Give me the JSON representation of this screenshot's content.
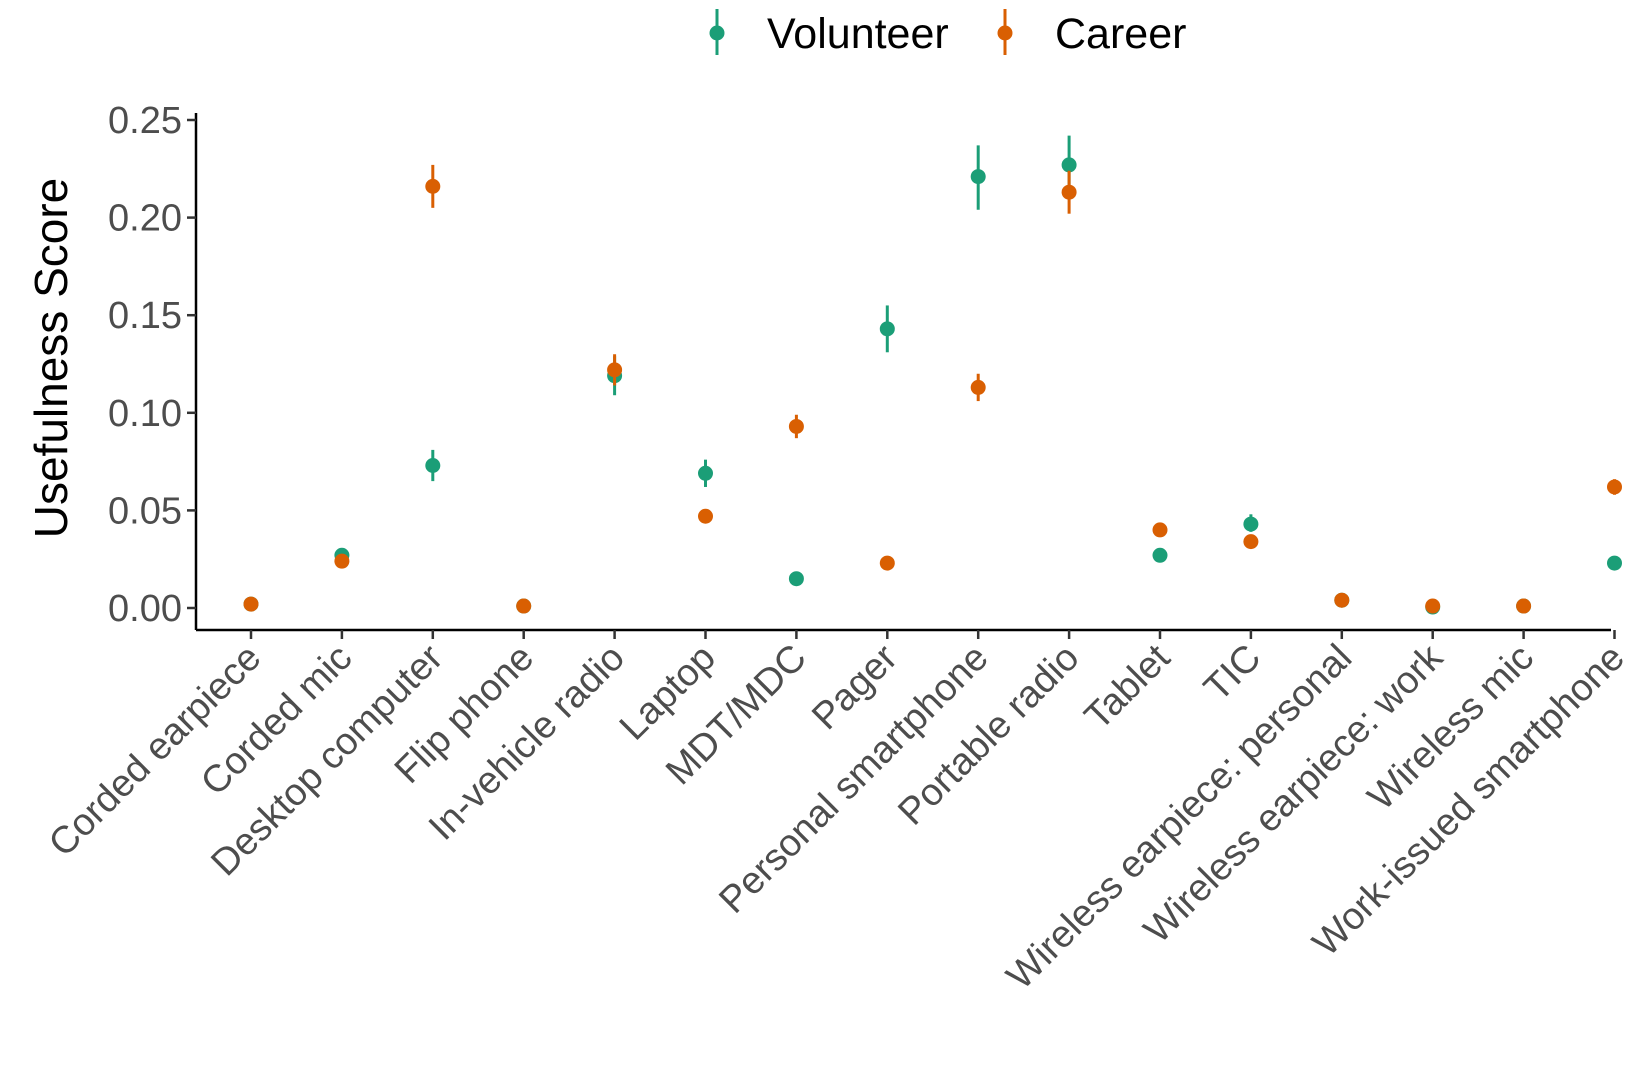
{
  "chart_data": {
    "type": "scatter",
    "ylabel": "Usefulness Score",
    "xlabel": "",
    "ylim": [
      -0.012,
      0.255
    ],
    "yticks": [
      "0.00",
      "0.05",
      "0.10",
      "0.15",
      "0.20",
      "0.25"
    ],
    "grid": false,
    "legend_position": "top",
    "categories": [
      "Corded earpiece",
      "Corded mic",
      "Desktop computer",
      "Flip phone",
      "In-vehicle radio",
      "Laptop",
      "MDT/MDC",
      "Pager",
      "Personal smartphone",
      "Portable radio",
      "Tablet",
      "TIC",
      "Wireless earpiece: personal",
      "Wireless earpiece: work",
      "Wireless mic",
      "Work-issued smartphone"
    ],
    "series": [
      {
        "name": "Volunteer",
        "color": "#1b9e77",
        "values": [
          0.002,
          0.027,
          0.073,
          0.001,
          0.119,
          0.069,
          0.015,
          0.143,
          0.221,
          0.227,
          0.027,
          0.043,
          0.004,
          0.0005,
          0.001,
          0.023
        ],
        "lower": [
          0.001,
          0.025,
          0.065,
          0.0005,
          0.109,
          0.062,
          0.013,
          0.131,
          0.204,
          0.213,
          0.025,
          0.039,
          0.003,
          0.0,
          0.0005,
          0.021
        ],
        "upper": [
          0.003,
          0.03,
          0.081,
          0.0015,
          0.129,
          0.076,
          0.017,
          0.155,
          0.237,
          0.242,
          0.03,
          0.048,
          0.006,
          0.0015,
          0.002,
          0.026
        ]
      },
      {
        "name": "Career",
        "color": "#d95f02",
        "values": [
          0.002,
          0.024,
          0.216,
          0.001,
          0.122,
          0.047,
          0.093,
          0.023,
          0.113,
          0.213,
          0.04,
          0.034,
          0.004,
          0.001,
          0.001,
          0.062
        ],
        "lower": [
          0.001,
          0.022,
          0.205,
          0.0005,
          0.114,
          0.045,
          0.087,
          0.021,
          0.106,
          0.202,
          0.038,
          0.032,
          0.003,
          0.0005,
          0.0005,
          0.058
        ],
        "upper": [
          0.003,
          0.026,
          0.227,
          0.0015,
          0.13,
          0.05,
          0.099,
          0.025,
          0.12,
          0.224,
          0.043,
          0.037,
          0.005,
          0.002,
          0.002,
          0.066
        ]
      }
    ]
  }
}
